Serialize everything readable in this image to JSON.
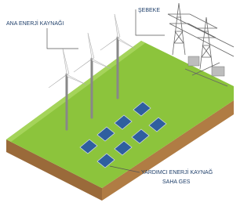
{
  "labels": {
    "main_source": "ANA ENERJİ KAYNAĞI",
    "grid": "ŞEBEKE",
    "auxiliary_source": "YARDIMCI ENERJİ KAYNAĞ",
    "solar_field": "SAHA GES"
  }
}
